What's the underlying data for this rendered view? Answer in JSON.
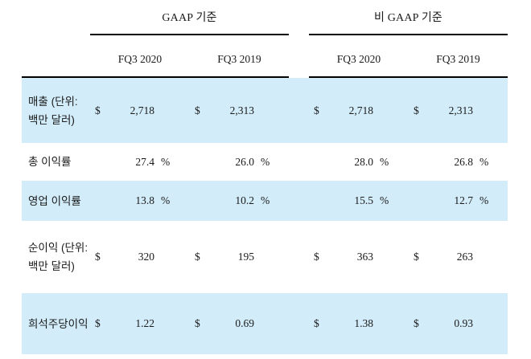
{
  "table": {
    "groups": [
      {
        "label": "GAAP 기준",
        "columns": [
          "FQ3 2020",
          "FQ3 2019"
        ]
      },
      {
        "label": "비 GAAP 기준",
        "columns": [
          "FQ3 2020",
          "FQ3 2019"
        ]
      }
    ],
    "rows": [
      {
        "label": "매출 (단위: 백만 달러)",
        "cells": [
          {
            "prefix": "$",
            "value": "2,718",
            "suffix": ""
          },
          {
            "prefix": "$",
            "value": "2,313",
            "suffix": ""
          },
          {
            "prefix": "$",
            "value": "2,718",
            "suffix": ""
          },
          {
            "prefix": "$",
            "value": "2,313",
            "suffix": ""
          }
        ]
      },
      {
        "label": "총 이익률",
        "cells": [
          {
            "prefix": "",
            "value": "27.4",
            "suffix": "%"
          },
          {
            "prefix": "",
            "value": "26.0",
            "suffix": "%"
          },
          {
            "prefix": "",
            "value": "28.0",
            "suffix": "%"
          },
          {
            "prefix": "",
            "value": "26.8",
            "suffix": "%"
          }
        ]
      },
      {
        "label": "영업 이익률",
        "cells": [
          {
            "prefix": "",
            "value": "13.8",
            "suffix": "%"
          },
          {
            "prefix": "",
            "value": "10.2",
            "suffix": "%"
          },
          {
            "prefix": "",
            "value": "15.5",
            "suffix": "%"
          },
          {
            "prefix": "",
            "value": "12.7",
            "suffix": "%"
          }
        ]
      },
      {
        "label": "순이익 (단위: 백만 달러)",
        "cells": [
          {
            "prefix": "$",
            "value": "320",
            "suffix": ""
          },
          {
            "prefix": "$",
            "value": "195",
            "suffix": ""
          },
          {
            "prefix": "$",
            "value": "363",
            "suffix": ""
          },
          {
            "prefix": "$",
            "value": "263",
            "suffix": ""
          }
        ]
      },
      {
        "label": "희석주당이익",
        "cells": [
          {
            "prefix": "$",
            "value": "1.22",
            "suffix": ""
          },
          {
            "prefix": "$",
            "value": "0.69",
            "suffix": ""
          },
          {
            "prefix": "$",
            "value": "1.38",
            "suffix": ""
          },
          {
            "prefix": "$",
            "value": "0.93",
            "suffix": ""
          }
        ]
      }
    ],
    "colors": {
      "band": "#d2ecf9",
      "rule": "#000000"
    }
  },
  "chart_data": {
    "type": "table",
    "column_groups": [
      "GAAP 기준",
      "비 GAAP 기준"
    ],
    "columns": [
      "GAAP 기준 FQ3 2020",
      "GAAP 기준 FQ3 2019",
      "비 GAAP 기준 FQ3 2020",
      "비 GAAP 기준 FQ3 2019"
    ],
    "rows": [
      {
        "metric": "매출 (단위: 백만 달러)",
        "unit": "$",
        "values": [
          2718,
          2313,
          2718,
          2313
        ]
      },
      {
        "metric": "총 이익률",
        "unit": "%",
        "values": [
          27.4,
          26.0,
          28.0,
          26.8
        ]
      },
      {
        "metric": "영업 이익률",
        "unit": "%",
        "values": [
          13.8,
          10.2,
          15.5,
          12.7
        ]
      },
      {
        "metric": "순이익 (단위: 백만 달러)",
        "unit": "$",
        "values": [
          320,
          195,
          363,
          263
        ]
      },
      {
        "metric": "희석주당이익",
        "unit": "$",
        "values": [
          1.22,
          0.69,
          1.38,
          0.93
        ]
      }
    ]
  }
}
